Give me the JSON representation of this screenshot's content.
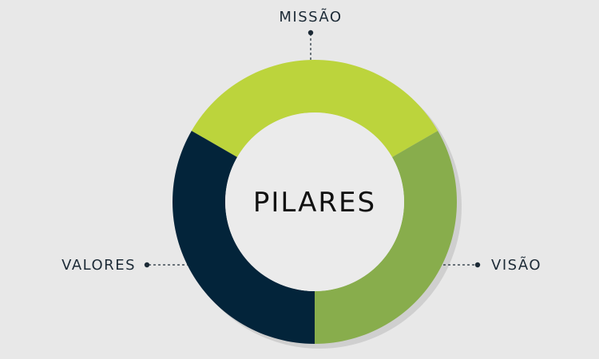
{
  "title": "PILARES",
  "pillars": [
    {
      "label": "MISSÃO",
      "color": "#bcd43c"
    },
    {
      "label": "VISÃO",
      "color": "#88ad4c"
    },
    {
      "label": "VALORES",
      "color": "#03243a"
    }
  ],
  "colors": {
    "background": "#e8e8e8",
    "center": "#ebebeb",
    "text": "#1c2a36",
    "connector": "#1c2a36"
  }
}
